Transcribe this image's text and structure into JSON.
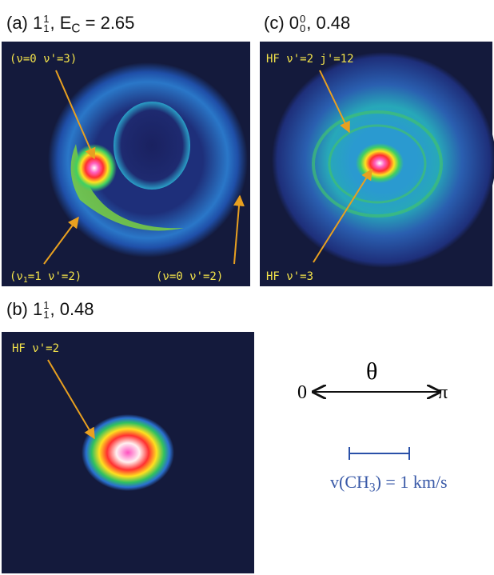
{
  "panels": [
    {
      "title": [
        {
          "text": "(a) 1"
        },
        {
          "sup": "1",
          "sub": "1"
        },
        {
          "text": ", E"
        },
        {
          "sub": "C"
        },
        {
          "text": " = 2.65"
        }
      ],
      "labels": [
        [
          {
            "text": "(ν=0 ν'=3)"
          }
        ],
        [
          {
            "text": "(ν"
          },
          {
            "sub": "1"
          },
          {
            "text": "=1 ν'=2)"
          }
        ],
        [
          {
            "text": "(ν=0 ν'=2)"
          }
        ]
      ]
    },
    {
      "title": [
        {
          "text": "(c) 0"
        },
        {
          "sup": "0",
          "sub": "0"
        },
        {
          "text": ", 0.48"
        }
      ],
      "labels": [
        [
          {
            "text": "HF ν'=2 j'=12"
          }
        ],
        [
          {
            "text": "HF ν'=3"
          }
        ]
      ]
    },
    {
      "title": [
        {
          "text": "(b) 1"
        },
        {
          "sup": "1",
          "sub": "1"
        },
        {
          "text": ", 0.48"
        }
      ],
      "labels": [
        [
          {
            "text": "HF ν'=2"
          }
        ]
      ]
    }
  ],
  "diagram": {
    "left": "0",
    "angle": "θ",
    "right": "π",
    "scale": [
      {
        "text": "v(CH"
      },
      {
        "sub": "3"
      },
      {
        "text": ") = 1 km/s"
      }
    ]
  }
}
